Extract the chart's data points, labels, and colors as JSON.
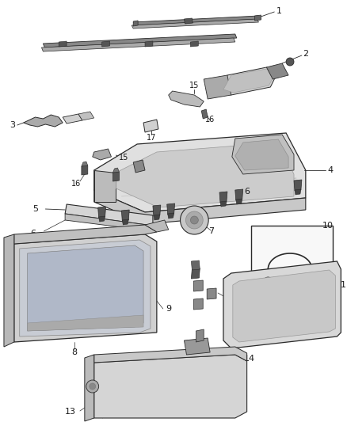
{
  "bg_color": "#ffffff",
  "fig_width": 4.38,
  "fig_height": 5.33,
  "dpi": 100,
  "line_color": "#2a2a2a",
  "text_color": "#1a1a1a",
  "fill_light": "#e8e8e8",
  "fill_mid": "#d0d0d0",
  "fill_dark": "#b8b8b8",
  "fill_screen": "#c0c8d0"
}
